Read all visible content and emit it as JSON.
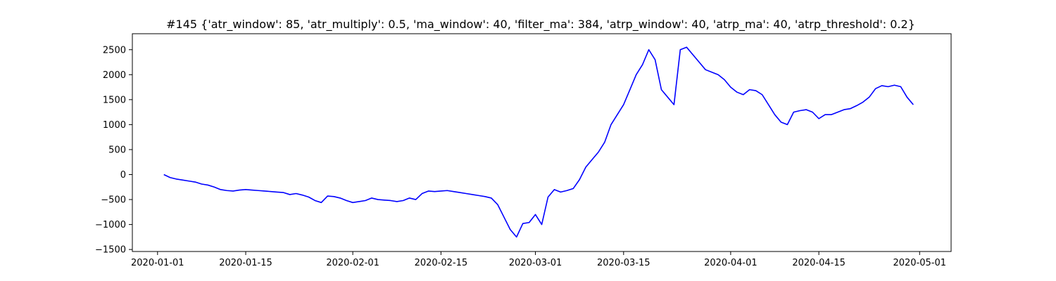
{
  "chart_data": {
    "type": "line",
    "title": "#145 {'atr_window': 85, 'atr_multiply': 0.5, 'ma_window': 40, 'filter_ma': 384, 'atrp_window': 40, 'atrp_ma': 40, 'atrp_threshold': 0.2}",
    "xlabel": "",
    "ylabel": "",
    "grid": false,
    "legend": "none",
    "xlim": [
      "2019-12-28",
      "2020-05-06"
    ],
    "ylim": [
      -1540,
      2820
    ],
    "x_ticks": [
      "2020-01-01",
      "2020-01-15",
      "2020-02-01",
      "2020-02-15",
      "2020-03-01",
      "2020-03-15",
      "2020-04-01",
      "2020-04-15",
      "2020-05-01"
    ],
    "y_ticks": [
      -1500,
      -1000,
      -500,
      0,
      500,
      1000,
      1500,
      2000,
      2500
    ],
    "series": [
      {
        "color": "#0000ff",
        "x": [
          "2020-01-02",
          "2020-01-03",
          "2020-01-04",
          "2020-01-05",
          "2020-01-06",
          "2020-01-07",
          "2020-01-08",
          "2020-01-09",
          "2020-01-10",
          "2020-01-11",
          "2020-01-12",
          "2020-01-13",
          "2020-01-14",
          "2020-01-15",
          "2020-01-16",
          "2020-01-17",
          "2020-01-18",
          "2020-01-19",
          "2020-01-20",
          "2020-01-21",
          "2020-01-22",
          "2020-01-23",
          "2020-01-24",
          "2020-01-25",
          "2020-01-26",
          "2020-01-27",
          "2020-01-28",
          "2020-01-29",
          "2020-01-30",
          "2020-01-31",
          "2020-02-01",
          "2020-02-02",
          "2020-02-03",
          "2020-02-04",
          "2020-02-05",
          "2020-02-06",
          "2020-02-07",
          "2020-02-08",
          "2020-02-09",
          "2020-02-10",
          "2020-02-11",
          "2020-02-12",
          "2020-02-13",
          "2020-02-14",
          "2020-02-15",
          "2020-02-16",
          "2020-02-17",
          "2020-02-18",
          "2020-02-19",
          "2020-02-20",
          "2020-02-21",
          "2020-02-22",
          "2020-02-23",
          "2020-02-24",
          "2020-02-25",
          "2020-02-26",
          "2020-02-27",
          "2020-02-28",
          "2020-02-29",
          "2020-03-01",
          "2020-03-02",
          "2020-03-03",
          "2020-03-04",
          "2020-03-05",
          "2020-03-06",
          "2020-03-07",
          "2020-03-08",
          "2020-03-09",
          "2020-03-10",
          "2020-03-11",
          "2020-03-12",
          "2020-03-13",
          "2020-03-14",
          "2020-03-15",
          "2020-03-16",
          "2020-03-17",
          "2020-03-18",
          "2020-03-19",
          "2020-03-20",
          "2020-03-21",
          "2020-03-22",
          "2020-03-23",
          "2020-03-24",
          "2020-03-25",
          "2020-03-26",
          "2020-03-27",
          "2020-03-28",
          "2020-03-29",
          "2020-03-30",
          "2020-03-31",
          "2020-04-01",
          "2020-04-02",
          "2020-04-03",
          "2020-04-04",
          "2020-04-05",
          "2020-04-06",
          "2020-04-07",
          "2020-04-08",
          "2020-04-09",
          "2020-04-10",
          "2020-04-11",
          "2020-04-12",
          "2020-04-13",
          "2020-04-14",
          "2020-04-15",
          "2020-04-16",
          "2020-04-17",
          "2020-04-18",
          "2020-04-19",
          "2020-04-20",
          "2020-04-21",
          "2020-04-22",
          "2020-04-23",
          "2020-04-24",
          "2020-04-25",
          "2020-04-26",
          "2020-04-27",
          "2020-04-28",
          "2020-04-29",
          "2020-04-30"
        ],
        "y": [
          0,
          -60,
          -90,
          -110,
          -130,
          -150,
          -190,
          -210,
          -250,
          -300,
          -320,
          -330,
          -310,
          -300,
          -310,
          -320,
          -330,
          -340,
          -350,
          -360,
          -400,
          -380,
          -410,
          -450,
          -520,
          -560,
          -430,
          -440,
          -470,
          -520,
          -560,
          -540,
          -520,
          -470,
          -500,
          -510,
          -520,
          -540,
          -520,
          -470,
          -500,
          -380,
          -330,
          -340,
          -330,
          -320,
          -340,
          -360,
          -380,
          -400,
          -420,
          -440,
          -470,
          -600,
          -850,
          -1100,
          -1250,
          -980,
          -960,
          -800,
          -1000,
          -450,
          -300,
          -350,
          -320,
          -280,
          -100,
          150,
          300,
          450,
          650,
          1000,
          1200,
          1400,
          1700,
          2000,
          2200,
          2500,
          2300,
          1700,
          1550,
          1400,
          2500,
          2550,
          2400,
          2250,
          2100,
          2050,
          2000,
          1900,
          1750,
          1650,
          1600,
          1700,
          1680,
          1600,
          1400,
          1200,
          1050,
          1000,
          1250,
          1280,
          1300,
          1250,
          1120,
          1200,
          1200,
          1250,
          1300,
          1320,
          1380,
          1450,
          1550,
          1720,
          1780,
          1760,
          1790,
          1760,
          1550,
          1400
        ]
      }
    ]
  }
}
